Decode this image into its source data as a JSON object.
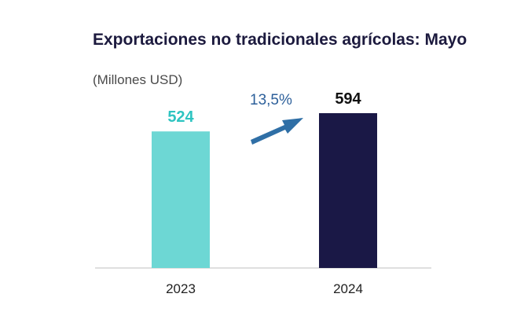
{
  "title": "Exportaciones no tradicionales agrícolas: Mayo",
  "subtitle": "(Millones USD)",
  "colors": {
    "bar_2023": "#6dd7d4",
    "bar_2024": "#1a1846",
    "label_2023": "#2ec4c1",
    "label_2024": "#111111",
    "arrow": "#2f6fa6",
    "growth": "#2c5f9a",
    "axis": "#bfbfbf"
  },
  "chart_data": {
    "type": "bar",
    "categories": [
      "2023",
      "2024"
    ],
    "values": [
      524,
      594
    ],
    "data_labels": [
      "524",
      "594"
    ],
    "annotation": {
      "text": "13,5%",
      "icon": "arrow-up-right-icon"
    },
    "title": "Exportaciones no tradicionales agrícolas: Mayo",
    "subtitle": "(Millones USD)",
    "xlabel": "",
    "ylabel": "",
    "ylim": [
      0,
      594
    ],
    "grid": false,
    "legend": "none"
  }
}
